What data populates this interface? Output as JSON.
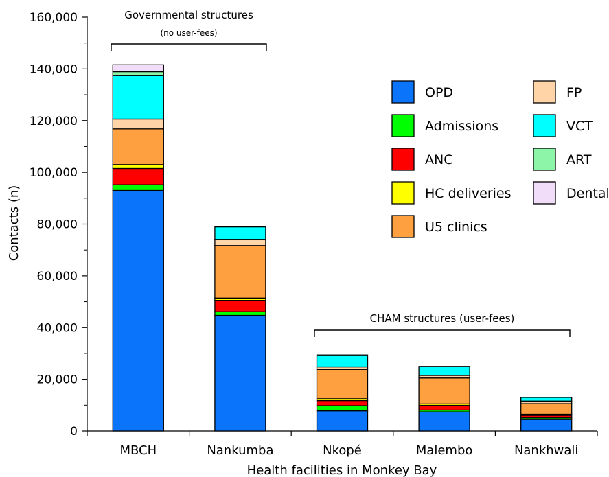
{
  "chart_data": {
    "type": "bar",
    "stacked": true,
    "xlabel": "Health facilities in Monkey Bay",
    "ylabel": "Contacts (n)",
    "ylim": [
      0,
      160000
    ],
    "yticks": [
      0,
      20000,
      40000,
      60000,
      80000,
      100000,
      120000,
      140000,
      160000
    ],
    "ytick_labels": [
      "0",
      "20,000",
      "40,000",
      "60,000",
      "80,000",
      "100,000",
      "120,000",
      "140,000",
      "160,000"
    ],
    "categories": [
      "MBCH",
      "Nankumba",
      "Nkopé",
      "Malembo",
      "Nankhwali"
    ],
    "series": [
      {
        "name": "OPD",
        "color": "#0A74FA",
        "values": [
          93000,
          44700,
          7800,
          7400,
          4500
        ]
      },
      {
        "name": "Admissions",
        "color": "#00FF00",
        "values": [
          2200,
          1400,
          2000,
          700,
          600
        ]
      },
      {
        "name": "ANC",
        "color": "#FF0000",
        "values": [
          6300,
          4400,
          2000,
          1800,
          1000
        ]
      },
      {
        "name": "HC deliveries",
        "color": "#FFFF00",
        "values": [
          1500,
          900,
          700,
          600,
          400
        ]
      },
      {
        "name": "U5 clinics",
        "color": "#FFA040",
        "values": [
          13800,
          20300,
          11300,
          10000,
          4100
        ]
      },
      {
        "name": "FP",
        "color": "#FFD5A8",
        "values": [
          3800,
          2400,
          1000,
          1000,
          1000
        ]
      },
      {
        "name": "VCT",
        "color": "#00FFFF",
        "values": [
          16800,
          4800,
          4600,
          3500,
          1400
        ]
      },
      {
        "name": "ART",
        "color": "#8DF5A8",
        "values": [
          1500,
          0,
          0,
          0,
          0
        ]
      },
      {
        "name": "Dental",
        "color": "#F1DCFA",
        "values": [
          2700,
          0,
          0,
          0,
          0
        ]
      }
    ],
    "legend": {
      "placement": "top-right",
      "columns": [
        [
          "OPD",
          "Admissions",
          "ANC",
          "HC deliveries",
          "U5 clinics"
        ],
        [
          "FP",
          "VCT",
          "ART",
          "Dental"
        ]
      ]
    },
    "annotations": {
      "governmental": {
        "title": "Governmental structures",
        "subtitle": "(no user-fees)",
        "categories": [
          "MBCH",
          "Nankumba"
        ]
      },
      "cham": {
        "title": "CHAM structures (user-fees)",
        "categories": [
          "Nkopé",
          "Malembo",
          "Nankhwali"
        ]
      }
    }
  }
}
